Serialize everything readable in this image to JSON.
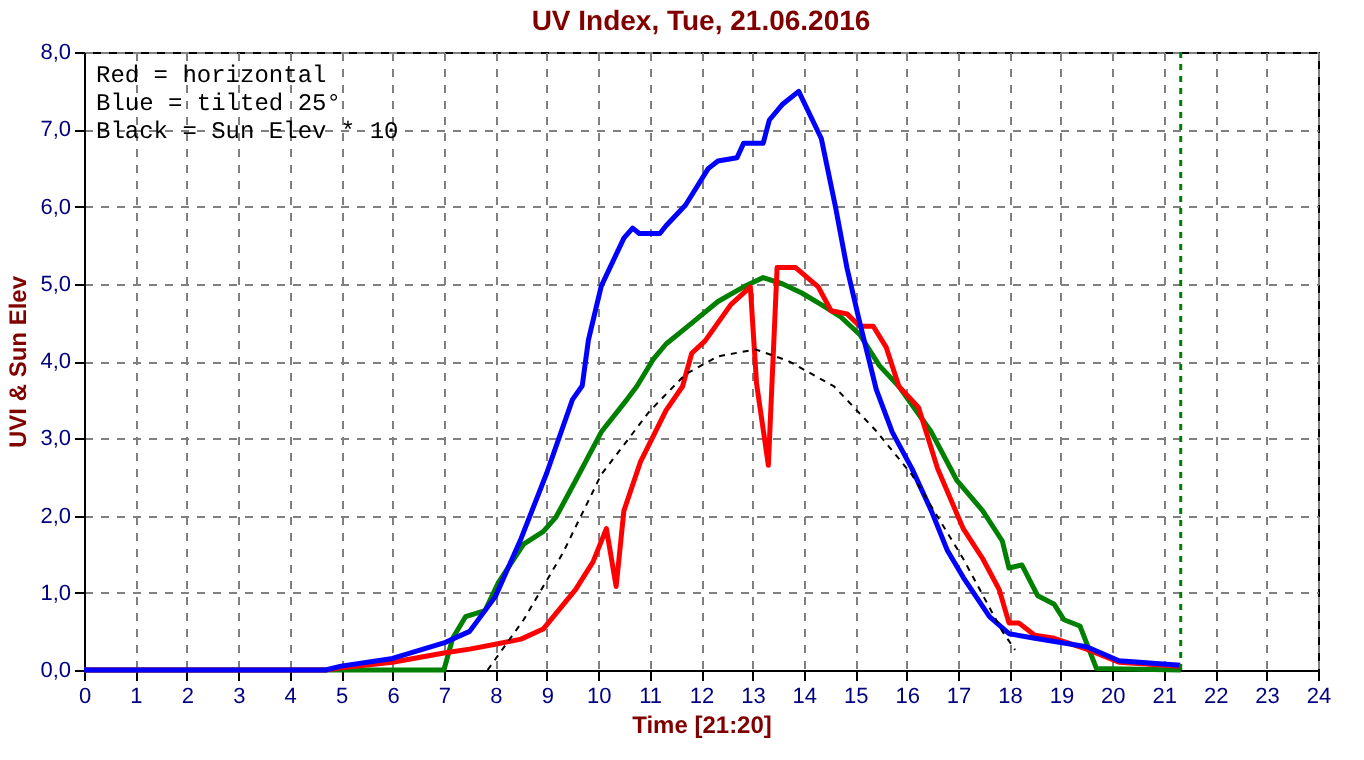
{
  "chart_data": {
    "type": "line",
    "title": "UV Index, Tue, 21.06.2016",
    "xlabel": "Time  [21:20]",
    "ylabel": "UVI & Sun Elev",
    "annotations": [
      "Red   = horizontal",
      "Blue  = tilted 25°",
      "Black = Sun Elev * 10"
    ],
    "xlim": [
      0,
      24
    ],
    "xticks": [
      0,
      1,
      2,
      3,
      4,
      5,
      6,
      7,
      8,
      9,
      10,
      11,
      12,
      13,
      14,
      15,
      16,
      17,
      18,
      19,
      20,
      21,
      22,
      23,
      24
    ],
    "ylim": [
      0,
      8
    ],
    "yticks": [
      {
        "value": 0,
        "label": "0,0"
      },
      {
        "value": 1,
        "label": "1,0"
      },
      {
        "value": 2,
        "label": "2,0"
      },
      {
        "value": 3,
        "label": "3,0"
      },
      {
        "value": 4,
        "label": "4,0"
      },
      {
        "value": 5,
        "label": "5,0"
      },
      {
        "value": 6,
        "label": "6,0"
      },
      {
        "value": 7,
        "label": "7,0"
      },
      {
        "value": 8,
        "label": "8,0"
      }
    ],
    "grid": true,
    "ref_lines": [
      {
        "axis": "x",
        "value": 21.33,
        "color": "#008000",
        "line_style": "dashed"
      }
    ],
    "series": [
      {
        "color": "#008000",
        "line_style": "solid",
        "x": [
          0,
          7.0,
          7.17,
          7.42,
          7.8,
          8.05,
          8.55,
          8.93,
          9.18,
          9.56,
          10.06,
          10.57,
          10.75,
          11.07,
          11.32,
          11.82,
          12.33,
          12.83,
          13.21,
          13.58,
          13.96,
          14.34,
          14.72,
          15.09,
          15.47,
          15.85,
          16.48,
          16.98,
          17.48,
          17.86,
          17.99,
          18.24,
          18.55,
          18.87,
          19.06,
          19.37,
          19.69,
          21.33
        ],
        "values": [
          0,
          0,
          0.41,
          0.69,
          0.77,
          1.12,
          1.63,
          1.79,
          1.98,
          2.45,
          3.08,
          3.51,
          3.67,
          4.02,
          4.22,
          4.49,
          4.77,
          4.96,
          5.08,
          5.0,
          4.88,
          4.73,
          4.57,
          4.34,
          3.94,
          3.67,
          3.08,
          2.45,
          2.06,
          1.67,
          1.32,
          1.36,
          0.96,
          0.85,
          0.65,
          0.57,
          0.02,
          0
        ]
      },
      {
        "color": "#ff0000",
        "line_style": "solid",
        "x": [
          0,
          4.7,
          5.0,
          6.0,
          7.0,
          7.5,
          8.05,
          8.5,
          8.93,
          9.56,
          9.9,
          10.16,
          10.35,
          10.5,
          10.82,
          11.32,
          11.64,
          11.82,
          12.08,
          12.58,
          12.96,
          13.08,
          13.31,
          13.48,
          13.84,
          14.28,
          14.53,
          14.84,
          15.09,
          15.35,
          15.6,
          15.85,
          16.23,
          16.6,
          17.1,
          17.48,
          17.8,
          17.99,
          18.18,
          18.49,
          18.87,
          19.5,
          20.13,
          21.32
        ],
        "values": [
          0,
          0,
          0.03,
          0.1,
          0.22,
          0.27,
          0.34,
          0.4,
          0.53,
          1.04,
          1.4,
          1.83,
          1.08,
          2.06,
          2.69,
          3.36,
          3.67,
          4.1,
          4.26,
          4.73,
          4.96,
          3.71,
          2.65,
          5.21,
          5.21,
          4.96,
          4.65,
          4.61,
          4.45,
          4.45,
          4.18,
          3.67,
          3.4,
          2.61,
          1.83,
          1.44,
          1.04,
          0.61,
          0.61,
          0.45,
          0.41,
          0.27,
          0.1,
          0.05
        ]
      },
      {
        "color": "#0000ff",
        "line_style": "solid",
        "x": [
          0,
          4.7,
          5.0,
          6.0,
          6.5,
          7.0,
          7.5,
          8.0,
          8.5,
          9.0,
          9.5,
          9.69,
          9.81,
          10.06,
          10.5,
          10.67,
          10.8,
          11.2,
          11.32,
          11.7,
          12.14,
          12.33,
          12.7,
          12.83,
          13.21,
          13.33,
          13.58,
          13.9,
          14.34,
          14.62,
          14.84,
          15.09,
          15.41,
          15.72,
          16.1,
          16.48,
          16.79,
          17.1,
          17.61,
          17.99,
          18.49,
          19.5,
          20.13,
          21.32
        ],
        "values": [
          0,
          0,
          0.05,
          0.15,
          0.25,
          0.35,
          0.5,
          0.95,
          1.7,
          2.55,
          3.5,
          3.68,
          4.27,
          4.97,
          5.59,
          5.72,
          5.65,
          5.65,
          5.75,
          6.02,
          6.49,
          6.59,
          6.63,
          6.82,
          6.82,
          7.12,
          7.32,
          7.49,
          6.88,
          5.98,
          5.2,
          4.49,
          3.63,
          3.08,
          2.61,
          2.06,
          1.55,
          1.2,
          0.69,
          0.47,
          0.41,
          0.3,
          0.12,
          0.06
        ]
      },
      {
        "color": "#000000",
        "line_style": "dashed",
        "x": [
          7.85,
          8.55,
          9.31,
          10.06,
          11.0,
          11.7,
          12.33,
          13.06,
          13.7,
          14.59,
          15.4,
          16.1,
          17.1,
          17.86,
          18.11
        ],
        "values": [
          0,
          0.65,
          1.51,
          2.53,
          3.35,
          3.83,
          4.06,
          4.15,
          4.0,
          3.67,
          3.1,
          2.53,
          1.44,
          0.5,
          0.26
        ]
      }
    ]
  }
}
